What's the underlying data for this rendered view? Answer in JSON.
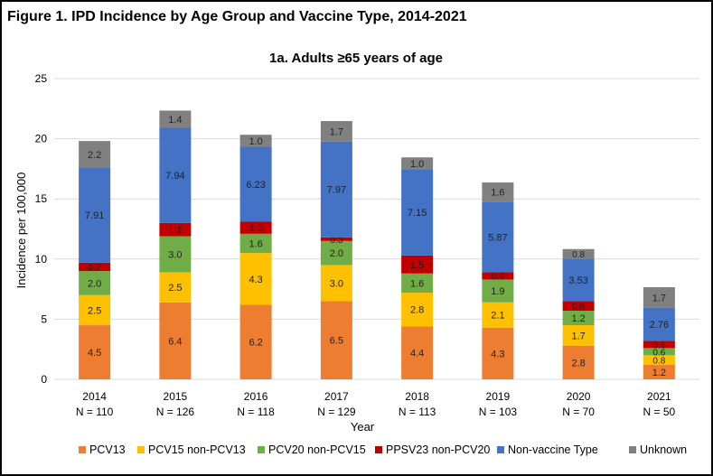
{
  "figure_title": "Figure 1. IPD Incidence by Age Group and Vaccine Type, 2014-2021",
  "chart_data": {
    "type": "bar",
    "stacked": true,
    "title": "1a. Adults ≥65 years of age",
    "xlabel": "Year",
    "ylabel": "Incidence per 100,000",
    "ylim": [
      0,
      25
    ],
    "yticks": [
      0,
      5,
      10,
      15,
      20,
      25
    ],
    "grid": true,
    "legend": "bottom",
    "categories": [
      "2014",
      "2015",
      "2016",
      "2017",
      "2018",
      "2019",
      "2020",
      "2021"
    ],
    "category_n": [
      "N = 110",
      "N = 126",
      "N = 118",
      "N = 129",
      "N = 113",
      "N = 103",
      "N = 70",
      "N = 50"
    ],
    "series": [
      {
        "name": "PCV13",
        "color": "#ED7D31",
        "values": [
          4.5,
          6.4,
          6.2,
          6.5,
          4.4,
          4.3,
          2.8,
          1.2
        ],
        "labels": [
          "4.5",
          "6.4",
          "6.2",
          "6.5",
          "4.4",
          "4.3",
          "2.8",
          "1.2"
        ]
      },
      {
        "name": "PCV15 non-PCV13",
        "color": "#FFC000",
        "values": [
          2.5,
          2.5,
          4.3,
          3.0,
          2.8,
          2.1,
          1.7,
          0.8
        ],
        "labels": [
          "2.5",
          "2.5",
          "4.3",
          "3.0",
          "2.8",
          "2.1",
          "1.7",
          "0.8"
        ]
      },
      {
        "name": "PCV20 non-PCV15",
        "color": "#70AD47",
        "values": [
          2.0,
          3.0,
          1.6,
          2.0,
          1.6,
          1.9,
          1.2,
          0.6
        ],
        "labels": [
          "2.0",
          "3.0",
          "1.6",
          "2.0",
          "1.6",
          "1.9",
          "1.2",
          "0.6"
        ]
      },
      {
        "name": "PPSV23 non-PCV20",
        "color": "#C00000",
        "values": [
          0.7,
          1.1,
          1.0,
          0.3,
          1.5,
          0.6,
          0.8,
          0.6
        ],
        "labels": [
          "0.7",
          "1.1",
          "1.0",
          "0.3",
          "1.5",
          "0.6",
          "0.8",
          "0.6"
        ]
      },
      {
        "name": "Non-vaccine Type",
        "color": "#4472C4",
        "values": [
          7.91,
          7.94,
          6.23,
          7.97,
          7.15,
          5.87,
          3.53,
          2.76
        ],
        "labels": [
          "7.91",
          "7.94",
          "6.23",
          "7.97",
          "7.15",
          "5.87",
          "3.53",
          "2.76"
        ]
      },
      {
        "name": "Unknown",
        "color": "#808080",
        "values": [
          2.2,
          1.4,
          1.0,
          1.7,
          1.0,
          1.6,
          0.8,
          1.7
        ],
        "labels": [
          "2.2",
          "1.4",
          "1.0",
          "1.7",
          "1.0",
          "1.6",
          "0.8",
          "1.7"
        ]
      }
    ]
  }
}
